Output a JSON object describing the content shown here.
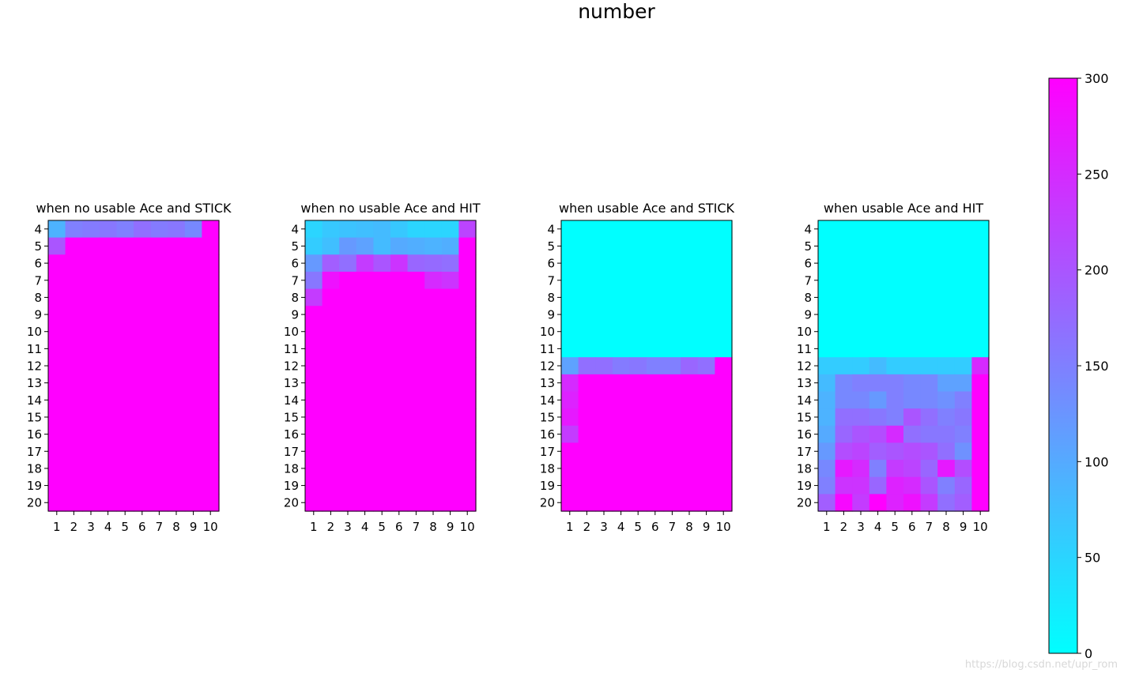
{
  "figure": {
    "suptitle": "number",
    "watermark": "https://blog.csdn.net/upr_rom"
  },
  "chart_data": {
    "type": "heatmap",
    "colormap": {
      "name": "cool",
      "vmin": 0,
      "vmax": 300,
      "low_color": "#00ffff",
      "high_color": "#ff00ff",
      "ticks": [
        0,
        50,
        100,
        150,
        200,
        250,
        300
      ]
    },
    "x_ticks": [
      1,
      2,
      3,
      4,
      5,
      6,
      7,
      8,
      9,
      10
    ],
    "y_ticks": [
      4,
      5,
      6,
      7,
      8,
      9,
      10,
      11,
      12,
      13,
      14,
      15,
      16,
      17,
      18,
      19,
      20
    ],
    "panels": [
      {
        "title": "when no usable Ace and STICK",
        "values": [
          [
            90,
            150,
            155,
            160,
            150,
            170,
            155,
            160,
            140,
            300
          ],
          [
            200,
            300,
            300,
            300,
            300,
            300,
            300,
            300,
            300,
            300
          ],
          [
            300,
            300,
            300,
            300,
            300,
            300,
            300,
            300,
            300,
            300
          ],
          [
            300,
            300,
            300,
            300,
            300,
            300,
            300,
            300,
            300,
            300
          ],
          [
            300,
            300,
            300,
            300,
            300,
            300,
            300,
            300,
            300,
            300
          ],
          [
            300,
            300,
            300,
            300,
            300,
            300,
            300,
            300,
            300,
            300
          ],
          [
            300,
            300,
            300,
            300,
            300,
            300,
            300,
            300,
            300,
            300
          ],
          [
            300,
            300,
            300,
            300,
            300,
            300,
            300,
            300,
            300,
            300
          ],
          [
            300,
            300,
            300,
            300,
            300,
            300,
            300,
            300,
            300,
            300
          ],
          [
            300,
            300,
            300,
            300,
            300,
            300,
            300,
            300,
            300,
            300
          ],
          [
            300,
            300,
            300,
            300,
            300,
            300,
            300,
            300,
            300,
            300
          ],
          [
            300,
            300,
            300,
            300,
            300,
            300,
            300,
            300,
            300,
            300
          ],
          [
            300,
            300,
            300,
            300,
            300,
            300,
            300,
            300,
            300,
            300
          ],
          [
            300,
            300,
            300,
            300,
            300,
            300,
            300,
            300,
            300,
            300
          ],
          [
            300,
            300,
            300,
            300,
            300,
            300,
            300,
            300,
            300,
            300
          ],
          [
            300,
            300,
            300,
            300,
            300,
            300,
            300,
            300,
            300,
            300
          ],
          [
            300,
            300,
            300,
            300,
            300,
            300,
            300,
            300,
            300,
            300
          ]
        ]
      },
      {
        "title": "when no usable Ace and HIT",
        "values": [
          [
            50,
            65,
            70,
            75,
            80,
            65,
            50,
            50,
            50,
            220
          ],
          [
            60,
            75,
            120,
            110,
            80,
            100,
            95,
            90,
            95,
            300
          ],
          [
            120,
            190,
            170,
            230,
            200,
            240,
            180,
            175,
            170,
            300
          ],
          [
            160,
            280,
            300,
            300,
            300,
            300,
            300,
            250,
            240,
            300
          ],
          [
            230,
            300,
            300,
            300,
            300,
            300,
            300,
            300,
            300,
            300
          ],
          [
            300,
            300,
            300,
            300,
            300,
            300,
            300,
            300,
            300,
            300
          ],
          [
            300,
            300,
            300,
            300,
            300,
            300,
            300,
            300,
            300,
            300
          ],
          [
            300,
            300,
            300,
            300,
            300,
            300,
            300,
            300,
            300,
            300
          ],
          [
            300,
            300,
            300,
            300,
            300,
            300,
            300,
            300,
            300,
            300
          ],
          [
            300,
            300,
            300,
            300,
            300,
            300,
            300,
            300,
            300,
            300
          ],
          [
            300,
            300,
            300,
            300,
            300,
            300,
            300,
            300,
            300,
            300
          ],
          [
            300,
            300,
            300,
            300,
            300,
            300,
            300,
            300,
            300,
            300
          ],
          [
            300,
            300,
            300,
            300,
            300,
            300,
            300,
            300,
            300,
            300
          ],
          [
            300,
            300,
            300,
            300,
            300,
            300,
            300,
            300,
            300,
            300
          ],
          [
            300,
            300,
            300,
            300,
            300,
            300,
            300,
            300,
            300,
            300
          ],
          [
            300,
            300,
            300,
            300,
            300,
            300,
            300,
            300,
            300,
            300
          ],
          [
            300,
            300,
            300,
            300,
            300,
            300,
            300,
            300,
            300,
            300
          ]
        ]
      },
      {
        "title": "when usable Ace and STICK",
        "values": [
          [
            0,
            0,
            0,
            0,
            0,
            0,
            0,
            0,
            0,
            0
          ],
          [
            0,
            0,
            0,
            0,
            0,
            0,
            0,
            0,
            0,
            0
          ],
          [
            0,
            0,
            0,
            0,
            0,
            0,
            0,
            0,
            0,
            0
          ],
          [
            0,
            0,
            0,
            0,
            0,
            0,
            0,
            0,
            0,
            0
          ],
          [
            0,
            0,
            0,
            0,
            0,
            0,
            0,
            0,
            0,
            0
          ],
          [
            0,
            0,
            0,
            0,
            0,
            0,
            0,
            0,
            0,
            0
          ],
          [
            0,
            0,
            0,
            0,
            0,
            0,
            0,
            0,
            0,
            0
          ],
          [
            0,
            0,
            0,
            0,
            0,
            0,
            0,
            0,
            0,
            0
          ],
          [
            110,
            170,
            170,
            155,
            160,
            150,
            150,
            180,
            170,
            300
          ],
          [
            250,
            300,
            300,
            300,
            300,
            300,
            300,
            300,
            300,
            300
          ],
          [
            260,
            300,
            300,
            300,
            300,
            300,
            300,
            300,
            300,
            300
          ],
          [
            270,
            300,
            300,
            300,
            300,
            300,
            300,
            300,
            300,
            300
          ],
          [
            230,
            300,
            300,
            300,
            300,
            300,
            300,
            300,
            300,
            300
          ],
          [
            300,
            300,
            300,
            300,
            300,
            300,
            300,
            300,
            300,
            300
          ],
          [
            300,
            300,
            300,
            300,
            300,
            300,
            300,
            300,
            300,
            300
          ],
          [
            300,
            300,
            300,
            300,
            300,
            300,
            300,
            300,
            300,
            300
          ],
          [
            300,
            300,
            300,
            300,
            300,
            300,
            300,
            300,
            300,
            300
          ]
        ]
      },
      {
        "title": "when usable Ace and HIT",
        "values": [
          [
            0,
            0,
            0,
            0,
            0,
            0,
            0,
            0,
            0,
            0
          ],
          [
            0,
            0,
            0,
            0,
            0,
            0,
            0,
            0,
            0,
            0
          ],
          [
            0,
            0,
            0,
            0,
            0,
            0,
            0,
            0,
            0,
            0
          ],
          [
            0,
            0,
            0,
            0,
            0,
            0,
            0,
            0,
            0,
            0
          ],
          [
            0,
            0,
            0,
            0,
            0,
            0,
            0,
            0,
            0,
            0
          ],
          [
            0,
            0,
            0,
            0,
            0,
            0,
            0,
            0,
            0,
            0
          ],
          [
            0,
            0,
            0,
            0,
            0,
            0,
            0,
            0,
            0,
            0
          ],
          [
            0,
            0,
            0,
            0,
            0,
            0,
            0,
            0,
            0,
            0
          ],
          [
            60,
            60,
            60,
            80,
            60,
            60,
            60,
            60,
            60,
            250
          ],
          [
            80,
            140,
            150,
            150,
            150,
            140,
            140,
            110,
            110,
            300
          ],
          [
            90,
            140,
            140,
            120,
            150,
            140,
            140,
            130,
            150,
            300
          ],
          [
            90,
            170,
            170,
            160,
            150,
            200,
            170,
            150,
            160,
            300
          ],
          [
            100,
            180,
            200,
            210,
            250,
            170,
            160,
            160,
            150,
            300
          ],
          [
            120,
            210,
            220,
            190,
            200,
            210,
            200,
            170,
            130,
            300
          ],
          [
            140,
            270,
            250,
            150,
            230,
            220,
            180,
            270,
            210,
            300
          ],
          [
            150,
            240,
            240,
            180,
            260,
            250,
            200,
            150,
            180,
            300
          ],
          [
            190,
            290,
            230,
            300,
            260,
            280,
            230,
            170,
            190,
            300
          ]
        ]
      }
    ]
  }
}
